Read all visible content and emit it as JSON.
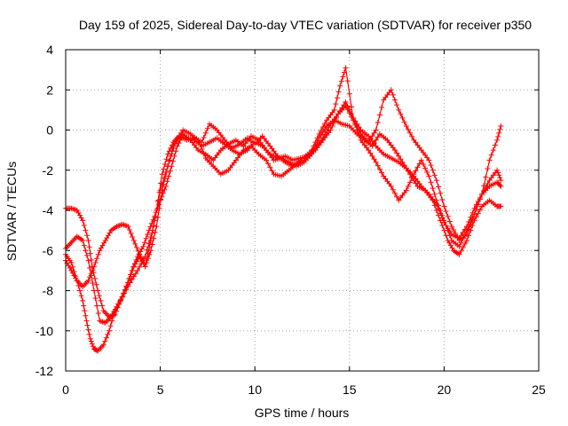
{
  "chart_data": {
    "type": "scatter",
    "title": "Day 159 of 2025, Sidereal Day-to-day VTEC variation (SDTVAR) for receiver p350",
    "xlabel": "GPS time / hours",
    "ylabel": "SDTVAR / TECUs",
    "xlim": [
      0,
      25
    ],
    "ylim": [
      -12,
      4
    ],
    "xticks": [
      0,
      5,
      10,
      15,
      20,
      25
    ],
    "yticks": [
      -12,
      -10,
      -8,
      -6,
      -4,
      -2,
      0,
      2,
      4
    ],
    "grid": true,
    "legend": "none",
    "marker": "plus",
    "color": "#ff0000",
    "series": [
      {
        "x": [
          0.0,
          0.3,
          0.6,
          0.9,
          1.2,
          1.4,
          1.7,
          2.0,
          2.3,
          2.6,
          2.9,
          3.2,
          3.5,
          3.8,
          4.1,
          4.4,
          4.7,
          5.0,
          5.3,
          5.6,
          5.9,
          6.2,
          6.6,
          7.0,
          7.4,
          7.8,
          8.2,
          8.6,
          9.0,
          9.4,
          9.8,
          10.2,
          10.6,
          11.0,
          11.4,
          11.8,
          12.2,
          12.6,
          13.0,
          13.4,
          13.8,
          14.2,
          14.6,
          15.0,
          15.4,
          15.8,
          16.2,
          16.6,
          17.0,
          17.4,
          17.8,
          18.2,
          18.6,
          19.0,
          19.4,
          19.8,
          20.2,
          20.5,
          20.8,
          21.2,
          21.6,
          22.0,
          22.4,
          22.8,
          23.0
        ],
        "y": [
          -3.9,
          -3.9,
          -4.0,
          -4.5,
          -5.5,
          -6.8,
          -8.0,
          -9.0,
          -9.3,
          -9.2,
          -8.5,
          -7.8,
          -7.0,
          -6.3,
          -5.8,
          -5.0,
          -4.3,
          -3.5,
          -2.8,
          -1.8,
          -0.8,
          -0.2,
          -0.5,
          -1.0,
          -1.2,
          -1.5,
          -1.0,
          -0.7,
          -0.5,
          -0.8,
          -0.3,
          -0.5,
          -1.0,
          -1.5,
          -1.4,
          -1.6,
          -1.8,
          -1.6,
          -1.2,
          -0.4,
          0.2,
          0.5,
          0.3,
          0.2,
          -0.2,
          -0.5,
          -0.8,
          -0.2,
          -0.5,
          -1.0,
          -1.6,
          -2.2,
          -2.8,
          -3.0,
          -3.5,
          -4.5,
          -5.5,
          -6.0,
          -6.2,
          -5.5,
          -4.5,
          -3.8,
          -3.5,
          -3.8,
          -3.8
        ]
      },
      {
        "x": [
          0.0,
          0.3,
          0.6,
          0.9,
          1.1,
          1.3,
          1.5,
          1.7,
          2.0,
          2.3,
          2.6,
          3.0,
          3.4,
          3.8,
          4.2,
          4.6,
          5.0,
          5.4,
          5.8,
          6.2,
          6.6,
          7.0,
          7.4,
          7.8,
          8.2,
          8.6,
          9.0,
          9.4,
          9.8,
          10.2,
          10.6,
          11.0,
          11.4,
          11.8,
          12.2,
          12.6,
          13.0,
          13.4,
          13.8,
          14.2,
          14.5,
          14.8,
          15.2,
          15.6,
          16.0,
          16.4,
          16.8,
          17.2,
          17.6,
          18.0,
          18.4,
          18.8,
          19.2,
          19.6,
          20.0,
          20.4,
          20.8,
          21.2,
          21.6,
          22.0,
          22.4,
          22.8,
          23.0
        ],
        "y": [
          -6.2,
          -6.6,
          -7.5,
          -8.5,
          -9.5,
          -10.4,
          -10.9,
          -11.0,
          -10.7,
          -10.0,
          -9.0,
          -8.3,
          -7.6,
          -7.0,
          -6.3,
          -5.0,
          -3.0,
          -1.8,
          -0.6,
          0.0,
          -0.2,
          -0.5,
          -1.4,
          -1.8,
          -2.2,
          -2.0,
          -1.5,
          -1.0,
          -0.8,
          -1.2,
          -1.5,
          -2.2,
          -2.3,
          -2.0,
          -1.7,
          -1.5,
          -1.0,
          -0.2,
          0.5,
          1.0,
          2.2,
          3.1,
          0.5,
          -0.5,
          -1.0,
          -1.6,
          -2.3,
          -2.8,
          -3.5,
          -3.0,
          -2.2,
          -1.5,
          -2.3,
          -3.5,
          -4.5,
          -5.5,
          -5.8,
          -5.0,
          -4.2,
          -3.2,
          -1.5,
          -0.5,
          0.2
        ]
      },
      {
        "x": [
          0.0,
          0.3,
          0.6,
          0.9,
          1.2,
          1.5,
          1.8,
          2.1,
          2.4,
          2.7,
          3.0,
          3.3,
          3.6,
          3.9,
          4.2,
          4.5,
          4.8,
          5.1,
          5.4,
          5.7,
          6.0,
          6.4,
          6.8,
          7.2,
          7.6,
          8.0,
          8.4,
          8.8,
          9.2,
          9.6,
          10.0,
          10.4,
          10.8,
          11.2,
          11.6,
          12.0,
          12.4,
          12.8,
          13.2,
          13.6,
          14.0,
          14.4,
          14.8,
          15.2,
          15.6,
          16.0,
          16.4,
          16.8,
          17.2,
          17.6,
          18.0,
          18.4,
          18.8,
          19.2,
          19.6,
          20.0,
          20.4,
          20.8,
          21.2,
          21.6,
          22.0,
          22.4,
          22.8,
          23.0
        ],
        "y": [
          -6.5,
          -7.0,
          -7.5,
          -7.8,
          -7.5,
          -6.8,
          -6.0,
          -5.5,
          -5.0,
          -4.8,
          -4.7,
          -4.8,
          -5.5,
          -6.2,
          -6.8,
          -6.0,
          -4.8,
          -3.0,
          -1.8,
          -0.8,
          -0.3,
          -0.4,
          -0.5,
          -0.8,
          -0.6,
          -0.4,
          -0.7,
          -1.0,
          -1.2,
          -1.0,
          -0.6,
          -0.8,
          -1.2,
          -1.4,
          -1.3,
          -1.5,
          -1.4,
          -1.3,
          -1.0,
          -0.5,
          0.0,
          0.8,
          1.2,
          0.5,
          -0.2,
          -0.6,
          0.0,
          1.5,
          2.0,
          1.0,
          0.2,
          -0.5,
          -1.0,
          -1.5,
          -2.5,
          -3.8,
          -4.8,
          -5.5,
          -5.2,
          -4.2,
          -3.2,
          -2.5,
          -2.0,
          -2.5
        ]
      },
      {
        "x": [
          0.0,
          0.3,
          0.6,
          0.9,
          1.2,
          1.5,
          1.8,
          2.1,
          2.4,
          2.7,
          3.0,
          3.3,
          3.6,
          3.9,
          4.2,
          4.5,
          4.8,
          5.1,
          5.4,
          5.7,
          6.0,
          6.4,
          6.8,
          7.2,
          7.6,
          8.0,
          8.4,
          8.8,
          9.2,
          9.6,
          10.0,
          10.4,
          10.8,
          11.2,
          11.6,
          12.0,
          12.4,
          12.8,
          13.2,
          13.6,
          14.0,
          14.4,
          14.8,
          15.2,
          15.6,
          16.0,
          16.4,
          16.8,
          17.2,
          17.6,
          18.0,
          18.4,
          18.8,
          19.2,
          19.6,
          20.0,
          20.4,
          20.8,
          21.2,
          21.6,
          22.0,
          22.4,
          22.8,
          23.0
        ],
        "y": [
          -5.9,
          -5.6,
          -5.3,
          -5.5,
          -6.5,
          -8.0,
          -9.5,
          -9.6,
          -9.3,
          -8.8,
          -8.3,
          -7.6,
          -6.8,
          -6.3,
          -6.8,
          -5.5,
          -4.0,
          -2.2,
          -1.2,
          -0.6,
          -0.3,
          -0.5,
          -0.4,
          -0.6,
          0.3,
          0.0,
          -0.5,
          -0.9,
          -0.7,
          -0.4,
          -0.7,
          -0.3,
          -0.8,
          -1.3,
          -1.6,
          -1.8,
          -1.5,
          -1.2,
          -0.9,
          -0.4,
          0.3,
          0.8,
          1.4,
          0.6,
          0.0,
          -0.3,
          -0.8,
          -1.2,
          -1.4,
          -1.6,
          -1.9,
          -2.3,
          -2.8,
          -3.2,
          -3.7,
          -4.6,
          -5.2,
          -5.4,
          -4.8,
          -3.9,
          -3.2,
          -2.8,
          -2.6,
          -2.8
        ]
      }
    ]
  }
}
